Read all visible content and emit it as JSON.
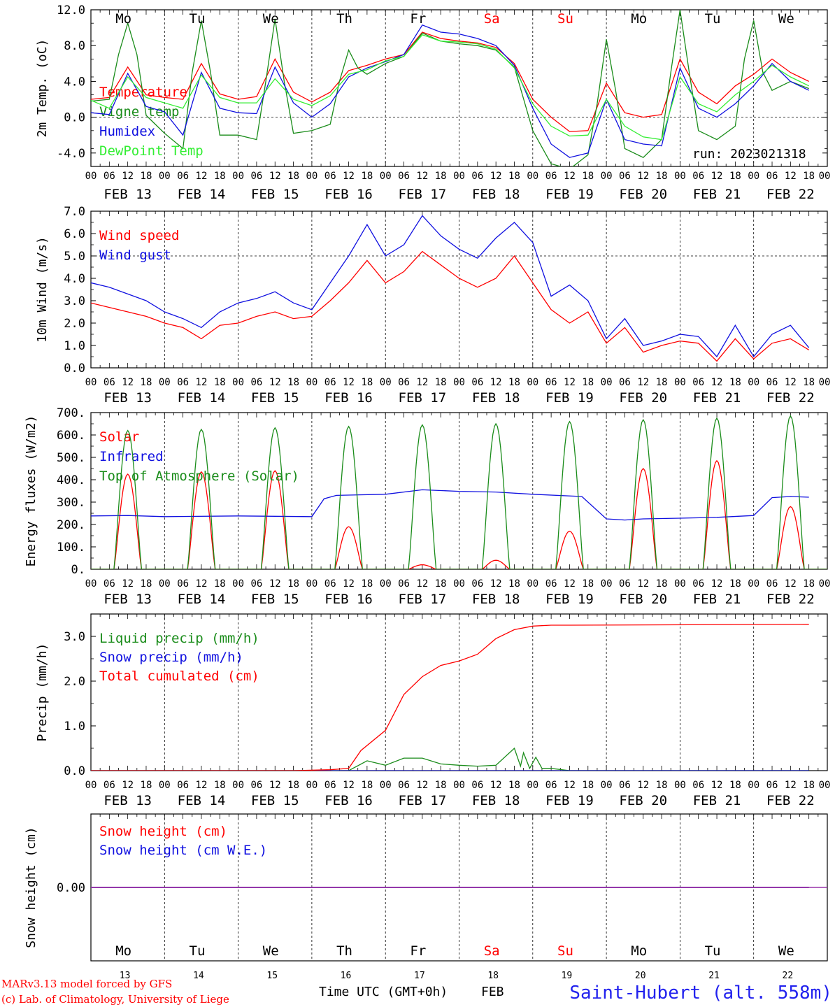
{
  "run_label": "run: 2023021318",
  "footer": {
    "credit_line1": "MARv3.13 model forced by GFS",
    "credit_line2": "(c) Lab. of Climatology, University of Liege",
    "xaxis_title": "Time UTC (GMT+0h)",
    "month": "FEB",
    "station": "Saint-Hubert (alt. 558m)"
  },
  "days": [
    "Mo",
    "Tu",
    "We",
    "Th",
    "Fr",
    "Sa",
    "Su",
    "Mo",
    "Tu",
    "We"
  ],
  "weekend_days": [
    5,
    6
  ],
  "day_numbers": [
    "13",
    "14",
    "15",
    "16",
    "17",
    "18",
    "19",
    "20",
    "21",
    "22"
  ],
  "date_labels": [
    "FEB 13",
    "FEB 14",
    "FEB 15",
    "FEB 16",
    "FEB 17",
    "FEB 18",
    "FEB 19",
    "FEB 20",
    "FEB 21",
    "FEB 22"
  ],
  "hour_ticks": [
    "00",
    "06",
    "12",
    "18"
  ],
  "final_hour_tick": "00",
  "colors": {
    "red": "#ff0000",
    "blue": "#1010e0",
    "green": "#1a8c1a",
    "lightgreen": "#33ee33",
    "purple": "#9933aa"
  },
  "chart_data": [
    {
      "type": "line",
      "ylabel": "2m Temp. (oC)",
      "ylim": [
        -5.5,
        12
      ],
      "yticks": [
        "12.0",
        "8.0",
        "4.0",
        "0.0",
        "-4.0"
      ],
      "ytick_values": [
        12,
        8,
        4,
        0,
        -4
      ],
      "ref_line": 0,
      "x_unit": "hours since FEB 13 00 UTC",
      "series": [
        {
          "name": "Temperature",
          "color": "red",
          "x": [
            0,
            6,
            12,
            18,
            24,
            30,
            36,
            42,
            48,
            54,
            60,
            66,
            72,
            78,
            84,
            90,
            96,
            102,
            108,
            114,
            120,
            126,
            132,
            138,
            144,
            150,
            156,
            162,
            168,
            174,
            180,
            186,
            192,
            198,
            204,
            210,
            216,
            222,
            228,
            234
          ],
          "y": [
            2.0,
            2.2,
            5.6,
            2.5,
            2.2,
            2.0,
            6.0,
            2.6,
            2.0,
            2.3,
            6.5,
            2.8,
            1.7,
            2.8,
            5.2,
            5.8,
            6.5,
            7.0,
            9.5,
            8.8,
            8.5,
            8.3,
            7.8,
            6.0,
            2.0,
            0.0,
            -1.6,
            -1.5,
            3.8,
            0.5,
            0.0,
            0.3,
            6.5,
            2.8,
            1.5,
            3.5,
            4.8,
            6.5,
            5.0,
            4.0
          ]
        },
        {
          "name": "Vigne temp",
          "color": "green",
          "x": [
            0,
            6,
            9,
            12,
            15,
            18,
            24,
            30,
            33,
            36,
            39,
            42,
            48,
            54,
            57,
            60,
            63,
            66,
            72,
            78,
            81,
            84,
            87,
            90,
            96,
            102,
            108,
            114,
            120,
            126,
            132,
            138,
            144,
            150,
            156,
            162,
            165,
            168,
            171,
            174,
            180,
            186,
            189,
            192,
            195,
            198,
            204,
            210,
            213,
            216,
            219,
            222,
            228,
            234
          ],
          "y": [
            1.8,
            2.0,
            7.0,
            10.5,
            7.0,
            0.2,
            -1.8,
            -3.5,
            5.0,
            10.8,
            5.0,
            -2.0,
            -2.0,
            -2.5,
            4.0,
            11.0,
            4.0,
            -1.8,
            -1.5,
            -0.8,
            4.0,
            7.5,
            5.5,
            4.8,
            6.0,
            6.8,
            9.4,
            8.5,
            8.2,
            8.0,
            7.5,
            5.6,
            -1.5,
            -5.2,
            -5.8,
            -4.2,
            1.5,
            8.7,
            3.0,
            -3.5,
            -4.5,
            -2.5,
            5.0,
            12.0,
            5.0,
            -1.5,
            -2.5,
            -1.0,
            6.5,
            10.8,
            5.0,
            3.0,
            4.0,
            3.2
          ]
        },
        {
          "name": "Humidex",
          "color": "blue",
          "x": [
            0,
            6,
            12,
            18,
            24,
            30,
            36,
            42,
            48,
            54,
            60,
            66,
            72,
            78,
            84,
            90,
            96,
            102,
            108,
            114,
            120,
            126,
            132,
            138,
            144,
            150,
            156,
            162,
            168,
            174,
            180,
            186,
            192,
            198,
            204,
            210,
            216,
            222,
            228,
            234
          ],
          "y": [
            0.5,
            0.3,
            4.9,
            1.2,
            0.6,
            -2.0,
            5.0,
            1.0,
            0.5,
            0.4,
            5.6,
            1.6,
            0.0,
            1.5,
            4.5,
            5.5,
            6.2,
            7.0,
            10.3,
            9.5,
            9.3,
            8.8,
            8.0,
            5.8,
            1.0,
            -3.0,
            -4.5,
            -4.0,
            2.0,
            -2.5,
            -3.0,
            -3.2,
            5.5,
            1.0,
            0.0,
            1.5,
            3.5,
            6.0,
            4.0,
            3.0
          ]
        },
        {
          "name": "DewPoint Temp",
          "color": "lightgreen",
          "x": [
            0,
            6,
            12,
            18,
            24,
            30,
            36,
            42,
            48,
            54,
            60,
            66,
            72,
            78,
            84,
            90,
            96,
            102,
            108,
            114,
            120,
            126,
            132,
            138,
            144,
            150,
            156,
            162,
            168,
            174,
            180,
            186,
            192,
            198,
            204,
            210,
            216,
            222,
            228,
            234
          ],
          "y": [
            1.9,
            1.0,
            4.5,
            2.2,
            1.6,
            1.0,
            4.7,
            2.2,
            1.6,
            1.6,
            4.3,
            2.0,
            1.3,
            2.4,
            4.8,
            5.3,
            6.3,
            6.8,
            9.2,
            8.5,
            8.4,
            8.2,
            7.6,
            5.5,
            1.5,
            -1.0,
            -2.1,
            -2.0,
            2.0,
            -1.0,
            -2.2,
            -2.5,
            4.5,
            1.5,
            0.6,
            2.5,
            4.0,
            5.8,
            4.5,
            3.5
          ]
        }
      ]
    },
    {
      "type": "line",
      "ylabel": "10m Wind (m/s)",
      "ylim": [
        0,
        7
      ],
      "yticks": [
        "7.0",
        "6.0",
        "5.0",
        "4.0",
        "3.0",
        "2.0",
        "1.0",
        "0.0"
      ],
      "ytick_values": [
        7,
        6,
        5,
        4,
        3,
        2,
        1,
        0
      ],
      "ref_line": 5,
      "x_unit": "hours since FEB 13 00 UTC",
      "series": [
        {
          "name": "Wind speed",
          "color": "red",
          "x": [
            0,
            6,
            12,
            18,
            24,
            30,
            36,
            42,
            48,
            54,
            60,
            66,
            72,
            78,
            84,
            90,
            96,
            102,
            108,
            114,
            120,
            126,
            132,
            138,
            144,
            150,
            156,
            162,
            168,
            174,
            180,
            186,
            192,
            198,
            204,
            210,
            216,
            222,
            228,
            234
          ],
          "y": [
            2.9,
            2.7,
            2.5,
            2.3,
            2.0,
            1.8,
            1.3,
            1.9,
            2.0,
            2.3,
            2.5,
            2.2,
            2.3,
            3.0,
            3.8,
            4.8,
            3.8,
            4.3,
            5.2,
            4.6,
            4.0,
            3.6,
            4.0,
            5.0,
            3.8,
            2.6,
            2.0,
            2.5,
            1.1,
            1.8,
            0.7,
            1.0,
            1.2,
            1.1,
            0.3,
            1.3,
            0.4,
            1.1,
            1.3,
            0.8
          ]
        },
        {
          "name": "Wind gust",
          "color": "blue",
          "x": [
            0,
            6,
            12,
            18,
            24,
            30,
            36,
            42,
            48,
            54,
            60,
            66,
            72,
            78,
            84,
            90,
            96,
            102,
            108,
            114,
            120,
            126,
            132,
            138,
            144,
            150,
            156,
            162,
            168,
            174,
            180,
            186,
            192,
            198,
            204,
            210,
            216,
            222,
            228,
            234
          ],
          "y": [
            3.8,
            3.6,
            3.3,
            3.0,
            2.5,
            2.2,
            1.8,
            2.5,
            2.9,
            3.1,
            3.4,
            2.9,
            2.6,
            3.8,
            5.0,
            6.4,
            5.0,
            5.5,
            6.8,
            5.9,
            5.3,
            4.9,
            5.8,
            6.5,
            5.6,
            3.2,
            3.7,
            3.0,
            1.3,
            2.2,
            1.0,
            1.2,
            1.5,
            1.4,
            0.5,
            1.9,
            0.5,
            1.5,
            1.9,
            0.9
          ]
        }
      ]
    },
    {
      "type": "line",
      "ylabel": "Energy fluxes (W/m2)",
      "ylim": [
        0,
        700
      ],
      "yticks": [
        "700.",
        "600.",
        "500.",
        "400.",
        "300.",
        "200.",
        "100.",
        "0."
      ],
      "ytick_values": [
        700,
        600,
        500,
        400,
        300,
        200,
        100,
        0
      ],
      "x_unit": "hours since FEB 13 00 UTC",
      "series": [
        {
          "name": "Solar",
          "color": "red",
          "kind": "diurnal",
          "day_peaks": [
            425,
            435,
            440,
            190,
            20,
            40,
            170,
            450,
            485,
            280
          ]
        },
        {
          "name": "Infrared",
          "color": "blue",
          "x": [
            0,
            12,
            24,
            48,
            72,
            76,
            80,
            96,
            108,
            120,
            132,
            144,
            160,
            168,
            174,
            180,
            192,
            204,
            216,
            222,
            228,
            234
          ],
          "y": [
            238,
            240,
            235,
            238,
            235,
            315,
            330,
            335,
            355,
            348,
            345,
            335,
            325,
            225,
            220,
            225,
            228,
            232,
            240,
            320,
            325,
            322
          ]
        },
        {
          "name": "Top of Atmosphere (Solar)",
          "color": "green",
          "kind": "diurnal",
          "day_peaks": [
            620,
            625,
            632,
            638,
            645,
            650,
            660,
            668,
            675,
            685
          ]
        }
      ]
    },
    {
      "type": "line",
      "ylabel": "Precip (mm/h)",
      "ylim": [
        0,
        3.5
      ],
      "yticks": [
        "3.0",
        "2.0",
        "1.0",
        "0.0"
      ],
      "ytick_values": [
        3,
        2,
        1,
        0
      ],
      "x_unit": "hours since FEB 13 00 UTC",
      "series": [
        {
          "name": "Liquid precip (mm/h)",
          "color": "green",
          "x": [
            0,
            84,
            90,
            96,
            102,
            108,
            114,
            120,
            126,
            132,
            138,
            140,
            141,
            143,
            145,
            147,
            150,
            156,
            234
          ],
          "y": [
            0,
            0,
            0.22,
            0.12,
            0.28,
            0.28,
            0.15,
            0.12,
            0.1,
            0.12,
            0.5,
            0.1,
            0.4,
            0.05,
            0.3,
            0.05,
            0.05,
            0.0,
            0
          ]
        },
        {
          "name": "Snow precip (mm/h)",
          "color": "blue",
          "x": [
            0,
            234
          ],
          "y": [
            0,
            0
          ]
        },
        {
          "name": "Total cumulated (cm)",
          "color": "red",
          "x": [
            0,
            66,
            78,
            84,
            88,
            96,
            102,
            108,
            114,
            120,
            126,
            132,
            138,
            144,
            150,
            156,
            234
          ],
          "y": [
            0,
            0,
            0.02,
            0.05,
            0.45,
            0.9,
            1.7,
            2.1,
            2.35,
            2.45,
            2.6,
            2.95,
            3.15,
            3.23,
            3.25,
            3.25,
            3.27
          ]
        }
      ]
    },
    {
      "type": "line",
      "ylabel": "Snow height (cm)",
      "yticks": [
        "0.00"
      ],
      "ytick_values": [
        0
      ],
      "ylim": [
        -1,
        1
      ],
      "x_unit": "hours since FEB 13 00 UTC",
      "series": [
        {
          "name": "Snow height (cm)",
          "color": "red",
          "x": [
            0,
            234
          ],
          "y": [
            0,
            0
          ]
        },
        {
          "name": "Snow height (cm W.E.)",
          "color": "blue",
          "x": [
            0,
            234
          ],
          "y": [
            0,
            0
          ]
        }
      ]
    }
  ]
}
